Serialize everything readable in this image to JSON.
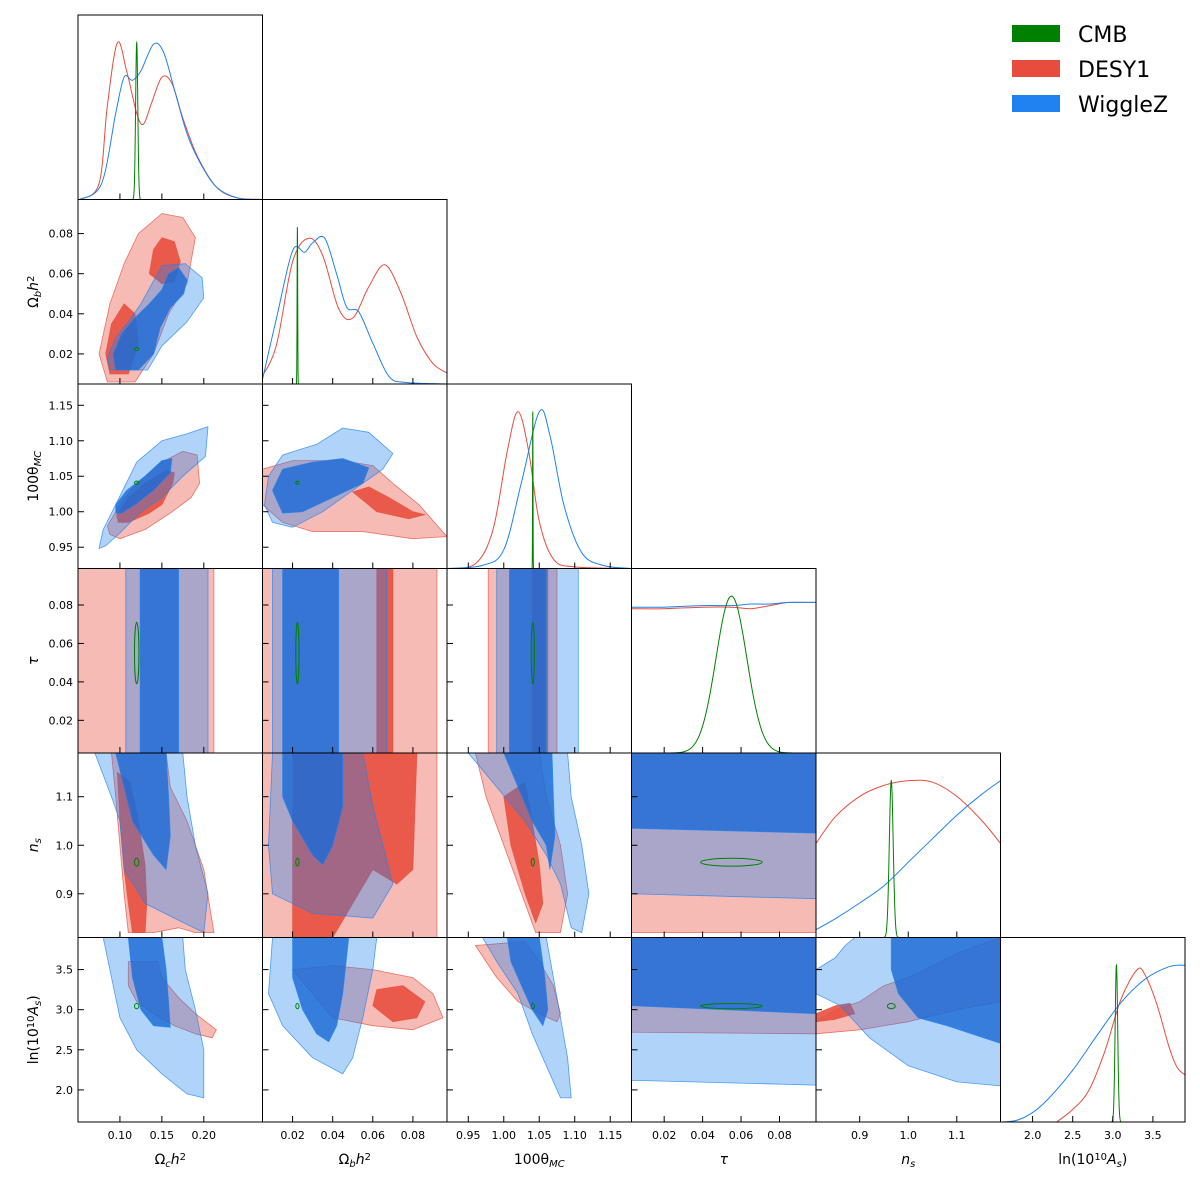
{
  "colors": {
    "CMB": "#008000",
    "DESY1": "#e74c3c",
    "WiggleZ": "#1e82f0"
  },
  "legend": {
    "placement": "top-right",
    "entries": [
      {
        "name": "CMB",
        "color": "#008000"
      },
      {
        "name": "DESY1",
        "color": "#e74c3c"
      },
      {
        "name": "WiggleZ",
        "color": "#1e82f0"
      }
    ]
  },
  "chart_data": {
    "type": "triangle-plot",
    "grid": false,
    "parameters": [
      {
        "key": "omch2",
        "axis_label": "Ωch²",
        "range": [
          0.05,
          0.27
        ],
        "ticks": [
          "0.10",
          "0.15",
          "0.20"
        ],
        "tick_values": [
          0.1,
          0.15,
          0.2
        ]
      },
      {
        "key": "ombh2",
        "axis_label": "Ωbh²",
        "range": [
          0.005,
          0.097
        ],
        "ticks": [
          "0.02",
          "0.04",
          "0.06",
          "0.08"
        ],
        "tick_values": [
          0.02,
          0.04,
          0.06,
          0.08
        ]
      },
      {
        "key": "theta",
        "axis_label": "100θMC",
        "range": [
          0.92,
          1.18
        ],
        "ticks": [
          "0.95",
          "1.00",
          "1.05",
          "1.10",
          "1.15"
        ],
        "tick_values": [
          0.95,
          1.0,
          1.05,
          1.1,
          1.15
        ]
      },
      {
        "key": "tau",
        "axis_label": "τ",
        "range": [
          0.003,
          0.099
        ],
        "ticks": [
          "0.02",
          "0.04",
          "0.06",
          "0.08"
        ],
        "tick_values": [
          0.02,
          0.04,
          0.06,
          0.08
        ]
      },
      {
        "key": "ns",
        "axis_label": "ns",
        "range": [
          0.81,
          1.19
        ],
        "ticks": [
          "0.9",
          "1.0",
          "1.1"
        ],
        "tick_values": [
          0.9,
          1.0,
          1.1
        ]
      },
      {
        "key": "logA",
        "axis_label": "ln(10¹⁰As)",
        "range": [
          1.6,
          3.9
        ],
        "ticks": [
          "2.0",
          "2.5",
          "3.0",
          "3.5"
        ],
        "tick_values": [
          2.0,
          2.5,
          3.0,
          3.5
        ]
      }
    ],
    "series": [
      {
        "name": "CMB",
        "color": "#008000",
        "means": [
          0.12,
          0.0224,
          1.0409,
          0.055,
          0.965,
          3.045
        ],
        "sigmas": [
          0.0013,
          0.00015,
          0.0003,
          0.008,
          0.004,
          0.016
        ]
      },
      {
        "name": "DESY1",
        "color": "#e74c3c"
      },
      {
        "name": "WiggleZ",
        "color": "#1e82f0"
      }
    ],
    "marginals": {
      "omch2": {
        "DESY1": [
          [
            0.052,
            0
          ],
          [
            0.075,
            0.1
          ],
          [
            0.085,
            0.6
          ],
          [
            0.097,
            1.0
          ],
          [
            0.108,
            0.82
          ],
          [
            0.12,
            0.55
          ],
          [
            0.128,
            0.48
          ],
          [
            0.138,
            0.62
          ],
          [
            0.15,
            0.78
          ],
          [
            0.162,
            0.74
          ],
          [
            0.175,
            0.52
          ],
          [
            0.192,
            0.28
          ],
          [
            0.215,
            0.08
          ],
          [
            0.24,
            0.01
          ],
          [
            0.27,
            0
          ]
        ],
        "WiggleZ": [
          [
            0.052,
            0
          ],
          [
            0.078,
            0.1
          ],
          [
            0.095,
            0.55
          ],
          [
            0.105,
            0.78
          ],
          [
            0.115,
            0.76
          ],
          [
            0.125,
            0.82
          ],
          [
            0.14,
            0.99
          ],
          [
            0.152,
            0.94
          ],
          [
            0.165,
            0.7
          ],
          [
            0.18,
            0.42
          ],
          [
            0.195,
            0.24
          ],
          [
            0.215,
            0.08
          ],
          [
            0.24,
            0.01
          ],
          [
            0.27,
            0
          ]
        ]
      },
      "ombh2": {
        "DESY1": [
          [
            0.005,
            0.05
          ],
          [
            0.012,
            0.25
          ],
          [
            0.02,
            0.78
          ],
          [
            0.028,
            0.93
          ],
          [
            0.035,
            0.82
          ],
          [
            0.043,
            0.48
          ],
          [
            0.05,
            0.42
          ],
          [
            0.058,
            0.62
          ],
          [
            0.066,
            0.76
          ],
          [
            0.074,
            0.58
          ],
          [
            0.082,
            0.3
          ],
          [
            0.09,
            0.13
          ],
          [
            0.097,
            0.07
          ]
        ],
        "WiggleZ": [
          [
            0.005,
            0.03
          ],
          [
            0.012,
            0.42
          ],
          [
            0.02,
            0.85
          ],
          [
            0.026,
            0.84
          ],
          [
            0.03,
            0.9
          ],
          [
            0.036,
            0.93
          ],
          [
            0.042,
            0.7
          ],
          [
            0.047,
            0.49
          ],
          [
            0.053,
            0.46
          ],
          [
            0.06,
            0.26
          ],
          [
            0.068,
            0.05
          ],
          [
            0.076,
            0.01
          ],
          [
            0.097,
            0
          ]
        ]
      },
      "theta": {
        "DESY1": [
          [
            0.92,
            0
          ],
          [
            0.96,
            0.03
          ],
          [
            0.985,
            0.25
          ],
          [
            1.005,
            0.75
          ],
          [
            1.02,
            1.0
          ],
          [
            1.035,
            0.75
          ],
          [
            1.05,
            0.3
          ],
          [
            1.07,
            0.06
          ],
          [
            1.1,
            0.01
          ],
          [
            1.18,
            0
          ]
        ],
        "WiggleZ": [
          [
            0.92,
            0
          ],
          [
            0.97,
            0.02
          ],
          [
            1.0,
            0.12
          ],
          [
            1.025,
            0.55
          ],
          [
            1.05,
            1.0
          ],
          [
            1.065,
            0.85
          ],
          [
            1.085,
            0.4
          ],
          [
            1.11,
            0.1
          ],
          [
            1.14,
            0.02
          ],
          [
            1.18,
            0
          ]
        ]
      },
      "tau": {
        "DESY1": [
          [
            0.003,
            0.92
          ],
          [
            0.02,
            0.92
          ],
          [
            0.04,
            0.93
          ],
          [
            0.055,
            0.93
          ],
          [
            0.065,
            0.92
          ],
          [
            0.075,
            0.94
          ],
          [
            0.085,
            0.96
          ],
          [
            0.099,
            0.96
          ]
        ],
        "WiggleZ": [
          [
            0.003,
            0.93
          ],
          [
            0.02,
            0.93
          ],
          [
            0.04,
            0.94
          ],
          [
            0.055,
            0.94
          ],
          [
            0.065,
            0.95
          ],
          [
            0.075,
            0.95
          ],
          [
            0.085,
            0.96
          ],
          [
            0.099,
            0.96
          ]
        ]
      },
      "ns": {
        "DESY1": [
          [
            0.81,
            0.6
          ],
          [
            0.85,
            0.77
          ],
          [
            0.9,
            0.9
          ],
          [
            0.95,
            0.97
          ],
          [
            1.0,
            1.0
          ],
          [
            1.05,
            0.99
          ],
          [
            1.1,
            0.9
          ],
          [
            1.15,
            0.75
          ],
          [
            1.19,
            0.6
          ]
        ],
        "WiggleZ": [
          [
            0.81,
            0.05
          ],
          [
            0.85,
            0.12
          ],
          [
            0.9,
            0.22
          ],
          [
            0.95,
            0.33
          ],
          [
            1.0,
            0.48
          ],
          [
            1.05,
            0.63
          ],
          [
            1.1,
            0.78
          ],
          [
            1.15,
            0.91
          ],
          [
            1.19,
            1.0
          ]
        ]
      },
      "logA": {
        "DESY1": [
          [
            2.3,
            0
          ],
          [
            2.5,
            0.08
          ],
          [
            2.7,
            0.2
          ],
          [
            2.9,
            0.45
          ],
          [
            3.1,
            0.78
          ],
          [
            3.3,
            0.97
          ],
          [
            3.4,
            0.94
          ],
          [
            3.55,
            0.75
          ],
          [
            3.7,
            0.48
          ],
          [
            3.8,
            0.35
          ],
          [
            3.9,
            0.3
          ]
        ],
        "WiggleZ": [
          [
            1.6,
            0
          ],
          [
            1.8,
            0.01
          ],
          [
            2.0,
            0.06
          ],
          [
            2.2,
            0.15
          ],
          [
            2.5,
            0.33
          ],
          [
            2.8,
            0.55
          ],
          [
            3.1,
            0.76
          ],
          [
            3.4,
            0.91
          ],
          [
            3.7,
            0.99
          ],
          [
            3.9,
            1.0
          ]
        ]
      }
    }
  }
}
